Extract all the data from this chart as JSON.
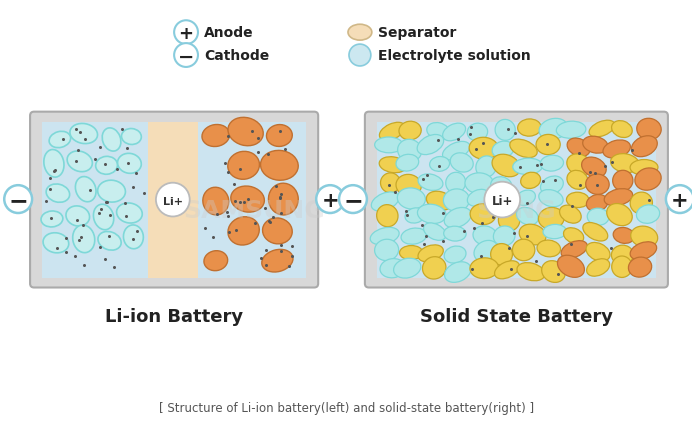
{
  "bg_color": "#ffffff",
  "left_title": "Li-ion Battery",
  "right_title": "Solid State Battery",
  "footer": "[ Structure of Li-ion battery(left) and solid-state battery(right) ]",
  "li_label": "Li+",
  "anode_color": "#7ed8d8",
  "anode_edge": "#55b8b8",
  "cathode_color": "#e8904a",
  "cathode_edge": "#c07030",
  "separator_color": "#f5ddb8",
  "electrolyte_bg": "#cce4f0",
  "solid_yellow": "#f0d050",
  "solid_yellow_edge": "#c8a828",
  "terminal_ring": "#88ccdd",
  "battery_outer": "#c8c8c8",
  "battery_inner_border": "#aaaaaa",
  "dot_color": "#555555",
  "legend_ring_color": "#88ccdd",
  "text_color": "#222222",
  "footer_color": "#555555"
}
